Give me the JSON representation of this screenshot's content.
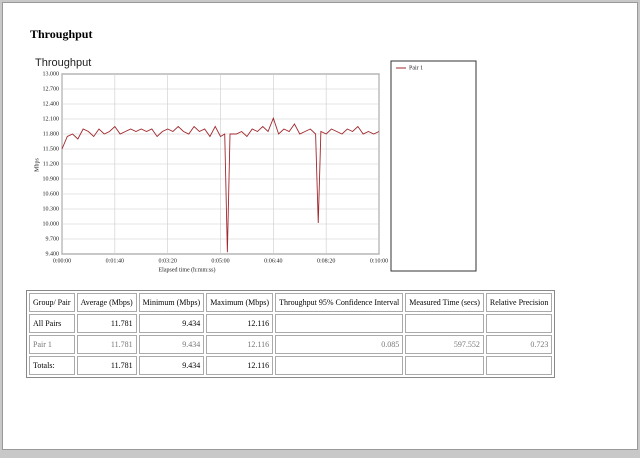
{
  "header": {
    "title": "Throughput"
  },
  "chart_data": {
    "type": "line",
    "title": "Throughput",
    "xlabel": "Elapsed time (h:mm:ss)",
    "ylabel": "Mbps",
    "x": [
      0,
      10,
      20,
      30,
      40,
      50,
      60,
      70,
      80,
      90,
      100,
      110,
      120,
      130,
      140,
      150,
      160,
      170,
      180,
      190,
      200,
      210,
      220,
      230,
      240,
      250,
      260,
      270,
      280,
      290,
      300,
      308,
      313,
      318,
      330,
      340,
      350,
      360,
      370,
      380,
      390,
      400,
      410,
      420,
      430,
      440,
      450,
      460,
      470,
      480,
      485,
      490,
      500,
      510,
      520,
      530,
      540,
      550,
      560,
      570,
      580,
      590,
      600
    ],
    "series": [
      {
        "name": "Pair 1",
        "color": "#a0282d",
        "values": [
          11.5,
          11.75,
          11.8,
          11.7,
          11.9,
          11.85,
          11.75,
          11.9,
          11.8,
          11.85,
          11.95,
          11.8,
          11.85,
          11.9,
          11.85,
          11.9,
          11.85,
          11.9,
          11.75,
          11.85,
          11.9,
          11.85,
          11.95,
          11.85,
          11.8,
          11.95,
          11.85,
          11.9,
          11.75,
          11.95,
          11.75,
          11.8,
          9.434,
          11.8,
          11.8,
          11.85,
          11.75,
          11.9,
          11.85,
          11.95,
          11.85,
          12.116,
          11.8,
          11.9,
          11.85,
          12.0,
          11.8,
          11.85,
          11.9,
          11.8,
          10.02,
          11.85,
          11.8,
          11.9,
          11.85,
          11.8,
          11.9,
          11.85,
          11.95,
          11.8,
          11.85,
          11.8,
          11.85
        ]
      }
    ],
    "xlim": [
      0,
      600
    ],
    "xticks": [
      {
        "value": 0,
        "label": "0:00:00"
      },
      {
        "value": 100,
        "label": "0:01:40"
      },
      {
        "value": 200,
        "label": "0:03:20"
      },
      {
        "value": 300,
        "label": "0:05:00"
      },
      {
        "value": 400,
        "label": "0:06:40"
      },
      {
        "value": 500,
        "label": "0:08:20"
      },
      {
        "value": 600,
        "label": "0:10:00"
      }
    ],
    "ylim": [
      9.4,
      13
    ],
    "yticks": [
      {
        "value": 9.4,
        "label": "9.400"
      },
      {
        "value": 9.7,
        "label": "9.700"
      },
      {
        "value": 10,
        "label": "10.000"
      },
      {
        "value": 10.3,
        "label": "10.300"
      },
      {
        "value": 10.6,
        "label": "10.600"
      },
      {
        "value": 10.9,
        "label": "10.900"
      },
      {
        "value": 11.2,
        "label": "11.200"
      },
      {
        "value": 11.5,
        "label": "11.500"
      },
      {
        "value": 11.8,
        "label": "11.800"
      },
      {
        "value": 12.1,
        "label": "12.100"
      },
      {
        "value": 12.4,
        "label": "12.400"
      },
      {
        "value": 12.7,
        "label": "12.700"
      },
      {
        "value": 13,
        "label": "13.000"
      }
    ],
    "grid": true
  },
  "table": {
    "header": [
      "Group/ Pair",
      "Average (Mbps)",
      "Minimum (Mbps)",
      "Maximum (Mbps)",
      "Throughput 95% Confidence Interval",
      "Measured Time (secs)",
      "Relative Precision"
    ],
    "rows": [
      [
        "All Pairs",
        "11.781",
        "9.434",
        "12.116",
        null,
        null,
        null
      ],
      [
        "Pair 1",
        "11.781",
        "9.434",
        "12.116",
        "0.085",
        "597.552",
        "0.723"
      ],
      [
        "Totals:",
        "11.781",
        "9.434",
        "12.116",
        null,
        null,
        null
      ]
    ]
  }
}
